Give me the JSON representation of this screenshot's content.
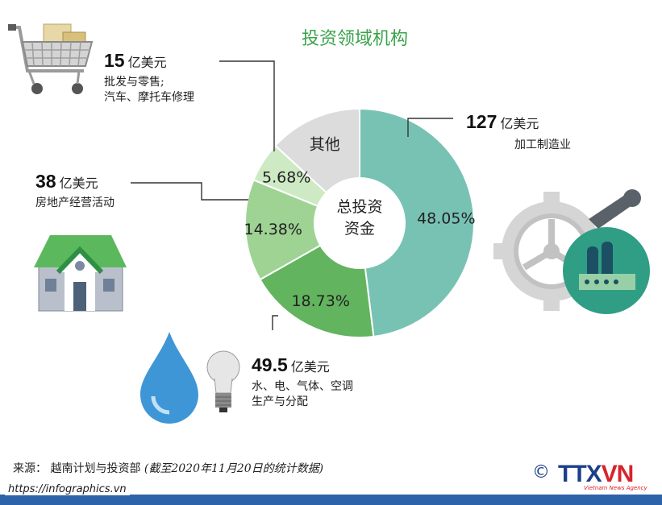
{
  "title": "投资领域机构",
  "chart_data": {
    "type": "pie",
    "center_label": [
      "总投资",
      "资金"
    ],
    "slices": [
      {
        "label": "48.05%",
        "value": 48.05,
        "color": "#78c2b4"
      },
      {
        "label": "18.73%",
        "value": 18.73,
        "color": "#62b45e"
      },
      {
        "label": "14.38%",
        "value": 14.38,
        "color": "#9ed394"
      },
      {
        "label": "5.68%",
        "value": 5.68,
        "color": "#cdeac5"
      },
      {
        "label": "其他",
        "value": 13.16,
        "color": "#dcdcdc"
      }
    ]
  },
  "callouts": [
    {
      "value": "127",
      "unit": "亿美元",
      "desc": [
        "加工制造业"
      ]
    },
    {
      "value": "49.5",
      "unit": "亿美元",
      "desc": [
        "水、电、气体、空调",
        "生产与分配"
      ]
    },
    {
      "value": "38",
      "unit": "亿美元",
      "desc": [
        "房地产经营活动"
      ]
    },
    {
      "value": "15",
      "unit": "亿美元",
      "desc": [
        "批发与零售;",
        "汽车、摩托车修理"
      ]
    }
  ],
  "source": {
    "text": "来源： 越南计划与投资部",
    "date": "(截至2020年11月20日的统计数据)"
  },
  "website": "https://infographics.vn",
  "logo": {
    "copyright": "©",
    "name_a": "TTX",
    "name_b": "VN",
    "tagline": "Vietnam News Agency"
  }
}
